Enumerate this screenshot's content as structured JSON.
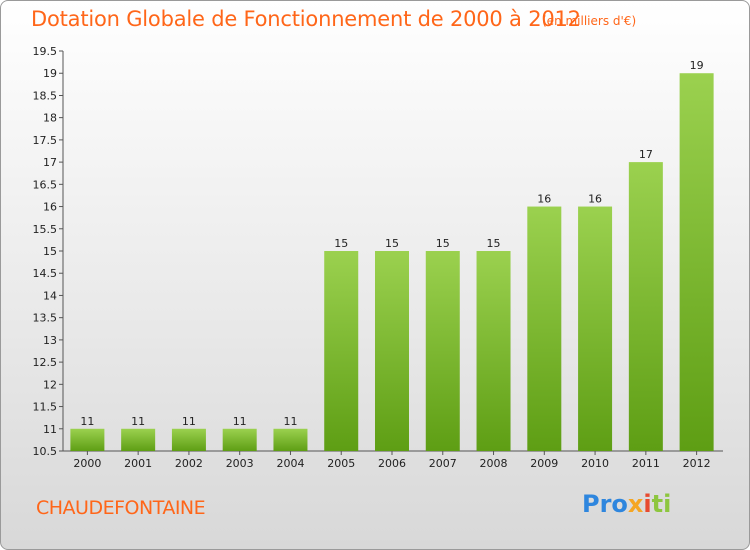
{
  "header": {
    "title": "Dotation Globale de Fonctionnement de 2000 à 2012",
    "unit": "(en milliers d'€)"
  },
  "footer": {
    "commune": "CHAUDEFONTAINE",
    "logo": [
      "Pro",
      "x",
      "i",
      "ti"
    ]
  },
  "colors": {
    "accent": "#ff6619",
    "bar_top": "#9bd14f",
    "bar_bottom": "#5e9e14"
  },
  "chart_data": {
    "type": "bar",
    "title": "Dotation Globale de Fonctionnement de 2000 à 2012",
    "unit": "(en milliers d'€)",
    "categories": [
      "2000",
      "2001",
      "2002",
      "2003",
      "2004",
      "2005",
      "2006",
      "2007",
      "2008",
      "2009",
      "2010",
      "2011",
      "2012"
    ],
    "values": [
      11,
      11,
      11,
      11,
      11,
      15,
      15,
      15,
      15,
      16,
      16,
      17,
      19
    ],
    "ylim": [
      10.5,
      19.5
    ],
    "yticks": [
      "10.5",
      "11",
      "11.5",
      "12",
      "12.5",
      "13",
      "13.5",
      "14",
      "14.5",
      "15",
      "15.5",
      "16",
      "16.5",
      "17",
      "17.5",
      "18",
      "18.5",
      "19",
      "19.5"
    ],
    "grid": false,
    "legend": "none"
  }
}
